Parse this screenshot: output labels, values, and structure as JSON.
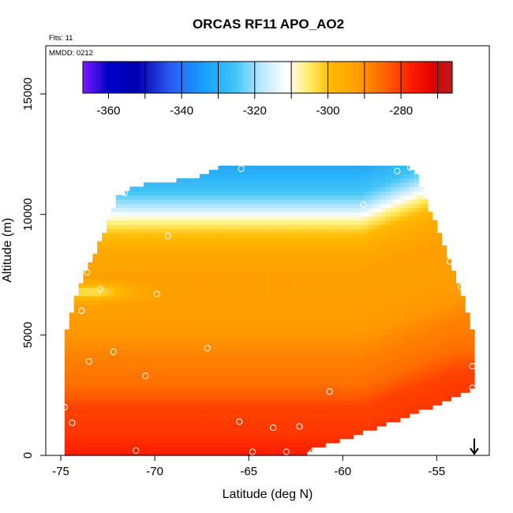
{
  "chart_data": {
    "type": "heatmap",
    "title": "ORCAS RF11 APO_AO2",
    "notes": {
      "flights": "Flts: 11",
      "date": "MMDD: 0212"
    },
    "xlabel": "Latitude (deg N)",
    "ylabel": "Altitude (m)",
    "xlim": [
      -75.8,
      -52.2
    ],
    "ylim": [
      0,
      17000
    ],
    "x_ticks": [
      -75,
      -70,
      -65,
      -60,
      -55
    ],
    "x_tick_labels": [
      "-75",
      "-70",
      "-65",
      "-60",
      "-55"
    ],
    "y_ticks": [
      0,
      5000,
      10000,
      15000
    ],
    "y_tick_labels": [
      "0",
      "5000",
      "10000",
      "15000"
    ],
    "colorbar": {
      "range": [
        -367,
        -266
      ],
      "ticks": [
        -360,
        -340,
        -320,
        -300,
        -280
      ],
      "tick_labels": [
        "-360",
        "-340",
        "-320",
        "-300",
        "-280"
      ],
      "stops": [
        {
          "value": -367,
          "color": "#7a1cff"
        },
        {
          "value": -360,
          "color": "#0000c8"
        },
        {
          "value": -352,
          "color": "#0000b0"
        },
        {
          "value": -343,
          "color": "#2b5cf2"
        },
        {
          "value": -334,
          "color": "#14a0ff"
        },
        {
          "value": -325,
          "color": "#45c6f5"
        },
        {
          "value": -318,
          "color": "#bfe9ff"
        },
        {
          "value": -311,
          "color": "#ffffff"
        },
        {
          "value": -305,
          "color": "#ffec60"
        },
        {
          "value": -299,
          "color": "#ffb800"
        },
        {
          "value": -292,
          "color": "#ff9f00"
        },
        {
          "value": -284,
          "color": "#ff6000"
        },
        {
          "value": -277,
          "color": "#ff1a00"
        },
        {
          "value": -271,
          "color": "#e00000"
        },
        {
          "value": -266,
          "color": "#b02020"
        }
      ]
    },
    "grid": false,
    "grid_resolution": {
      "nx": 88,
      "ny": 70
    },
    "envelope": {
      "top": [
        {
          "x": -74.8,
          "y": 4800
        },
        {
          "x": -74.0,
          "y": 7100
        },
        {
          "x": -73.0,
          "y": 8700
        },
        {
          "x": -72.0,
          "y": 10700
        },
        {
          "x": -71.0,
          "y": 11200
        },
        {
          "x": -70.0,
          "y": 11300
        },
        {
          "x": -68.0,
          "y": 11500
        },
        {
          "x": -66.0,
          "y": 12100
        },
        {
          "x": -62.0,
          "y": 12100
        },
        {
          "x": -57.0,
          "y": 12100
        },
        {
          "x": -56.2,
          "y": 11800
        },
        {
          "x": -55.0,
          "y": 9500
        },
        {
          "x": -54.0,
          "y": 7500
        },
        {
          "x": -53.4,
          "y": 6000
        },
        {
          "x": -53.0,
          "y": 4800
        }
      ],
      "bottom": [
        {
          "x": -75.0,
          "y": 0
        },
        {
          "x": -67.0,
          "y": 0
        },
        {
          "x": -62.0,
          "y": 0
        },
        {
          "x": -61.5,
          "y": 300
        },
        {
          "x": -59.5,
          "y": 800
        },
        {
          "x": -57.0,
          "y": 1500
        },
        {
          "x": -55.0,
          "y": 2100
        },
        {
          "x": -53.0,
          "y": 2800
        }
      ]
    },
    "value_field": {
      "profile": [
        {
          "alt": 0,
          "value": -277
        },
        {
          "alt": 1000,
          "value": -280
        },
        {
          "alt": 2000,
          "value": -281
        },
        {
          "alt": 3000,
          "value": -286
        },
        {
          "alt": 4000,
          "value": -288
        },
        {
          "alt": 5000,
          "value": -291
        },
        {
          "alt": 6000,
          "value": -292
        },
        {
          "alt": 7500,
          "value": -292
        },
        {
          "alt": 8500,
          "value": -295
        },
        {
          "alt": 9200,
          "value": -300
        },
        {
          "alt": 9800,
          "value": -308
        },
        {
          "alt": 10300,
          "value": -318
        },
        {
          "alt": 11000,
          "value": -326
        },
        {
          "alt": 12200,
          "value": -333
        }
      ],
      "south_tongue": {
        "lat": -73.5,
        "alt": 6800,
        "value": -304
      },
      "north_boundary_lift_m": 1500
    },
    "sample_points": [
      {
        "x": -75.0,
        "y": 150
      },
      {
        "x": -74.8,
        "y": 2000
      },
      {
        "x": -74.4,
        "y": 1350
      },
      {
        "x": -73.9,
        "y": 6000
      },
      {
        "x": -73.6,
        "y": 7600
      },
      {
        "x": -73.5,
        "y": 3900
      },
      {
        "x": -72.9,
        "y": 6900
      },
      {
        "x": -72.2,
        "y": 4300
      },
      {
        "x": -71.6,
        "y": 10900
      },
      {
        "x": -71.0,
        "y": 200
      },
      {
        "x": -70.5,
        "y": 3300
      },
      {
        "x": -69.9,
        "y": 6700
      },
      {
        "x": -69.3,
        "y": 9100
      },
      {
        "x": -67.2,
        "y": 4450
      },
      {
        "x": -65.5,
        "y": 1400
      },
      {
        "x": -65.4,
        "y": 11900
      },
      {
        "x": -64.8,
        "y": 150
      },
      {
        "x": -63.7,
        "y": 1150
      },
      {
        "x": -63.0,
        "y": 150
      },
      {
        "x": -62.3,
        "y": 1200
      },
      {
        "x": -61.6,
        "y": 150
      },
      {
        "x": -61.3,
        "y": 150
      },
      {
        "x": -60.7,
        "y": 2650
      },
      {
        "x": -58.9,
        "y": 10400
      },
      {
        "x": -57.1,
        "y": 11800
      },
      {
        "x": -56.4,
        "y": 11950
      },
      {
        "x": -54.3,
        "y": 8050
      },
      {
        "x": -53.7,
        "y": 7000
      },
      {
        "x": -53.1,
        "y": 3700
      },
      {
        "x": -53.1,
        "y": 2800
      }
    ],
    "flight_direction_marker": {
      "x": -53.0,
      "y_top": 700,
      "y_bottom": 0,
      "symbol": "arrow-down"
    }
  }
}
